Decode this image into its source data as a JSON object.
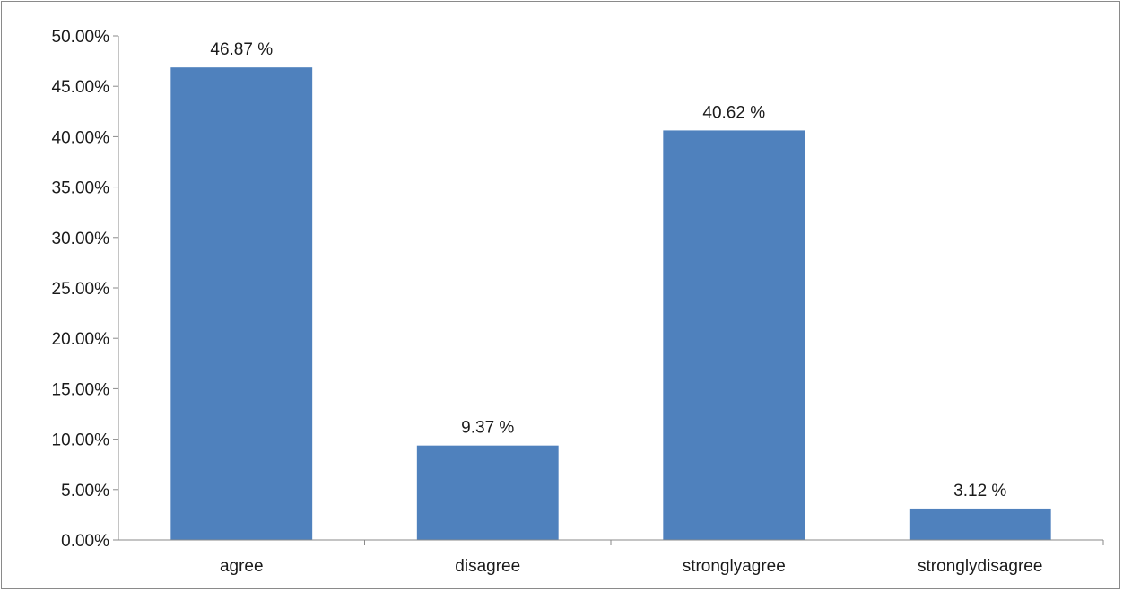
{
  "chart_data": {
    "type": "bar",
    "title": "",
    "xlabel": "",
    "ylabel": "",
    "categories": [
      "agree",
      "disagree",
      "stronglyagree",
      "stronglydisagree"
    ],
    "values": [
      46.87,
      9.37,
      40.62,
      3.12
    ],
    "data_labels": [
      "46.87 %",
      "9.37 %",
      "40.62 %",
      "3.12 %"
    ],
    "ylim": [
      0,
      50
    ],
    "y_ticks": [
      0,
      5,
      10,
      15,
      20,
      25,
      30,
      35,
      40,
      45,
      50
    ],
    "y_tick_labels": [
      "0.00%",
      "5.00%",
      "10.00%",
      "15.00%",
      "20.00%",
      "25.00%",
      "30.00%",
      "35.00%",
      "40.00%",
      "45.00%",
      "50.00%"
    ],
    "grid": false,
    "legend": "none",
    "bar_color": "#4f81bd"
  }
}
